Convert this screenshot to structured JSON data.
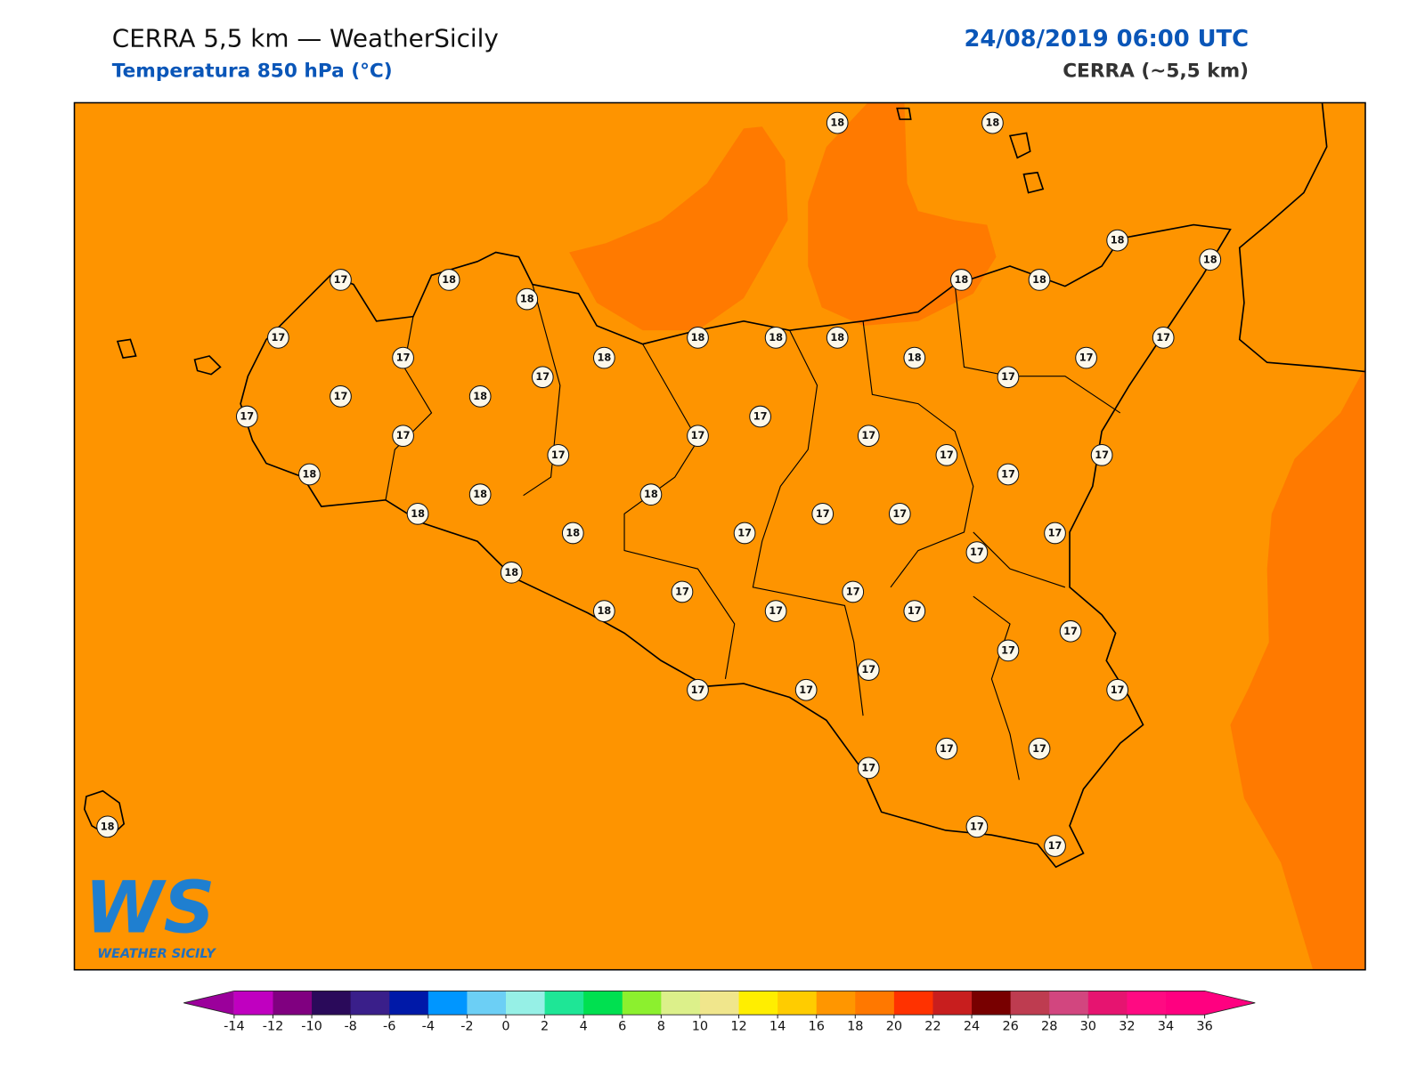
{
  "header": {
    "title": "CERRA 5,5 km — WeatherSicily",
    "subtitle": "Temperatura 850 hPa (°C)",
    "date": "24/08/2019 06:00 UTC",
    "model": "CERRA (~5,5 km)"
  },
  "stations": [
    18,
    18,
    17,
    18,
    18,
    18,
    18,
    18,
    18,
    17,
    17,
    18,
    18,
    18,
    17,
    18,
    18,
    17,
    17,
    18,
    17,
    17,
    17,
    17,
    17,
    17,
    17,
    17,
    17,
    17,
    18,
    17,
    18,
    18,
    18,
    17,
    17,
    17,
    18,
    17,
    17,
    18,
    17,
    17,
    17,
    17,
    18,
    17,
    17,
    17,
    17,
    17,
    17,
    17,
    17,
    17,
    17,
    17,
    18
  ],
  "colorbar": {
    "ticks": [
      -14,
      -12,
      -10,
      -8,
      -6,
      -4,
      -2,
      0,
      2,
      4,
      6,
      8,
      10,
      12,
      14,
      16,
      18,
      20,
      22,
      24,
      26,
      28,
      30,
      32,
      34,
      36
    ],
    "under": "#9b009b",
    "over": "#ff0080",
    "colors": [
      "#c000c0",
      "#800080",
      "#2a0a5a",
      "#3a1f8a",
      "#0019a8",
      "#0096ff",
      "#6ccff5",
      "#96f0e6",
      "#1ee696",
      "#00e050",
      "#8cf02e",
      "#dcf08a",
      "#f0e68c",
      "#ffee00",
      "#ffcc00",
      "#ff9600",
      "#ff7800",
      "#ff3200",
      "#c81e1e",
      "#780000",
      "#be3c50",
      "#d2467f",
      "#e61470",
      "#ff0a82",
      "#ff0080"
    ]
  },
  "logo": {
    "mark": "WS",
    "text": "WEATHER SICILY"
  }
}
